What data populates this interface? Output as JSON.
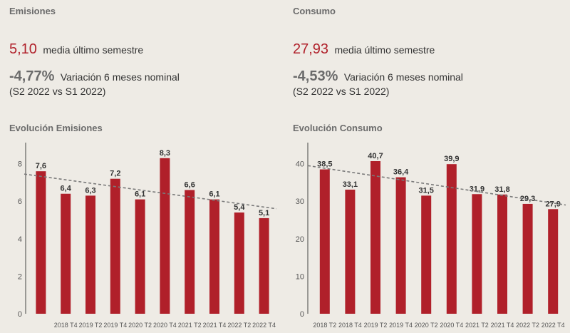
{
  "emisiones": {
    "title": "Emisiones",
    "avg_value": "5,10",
    "avg_label": "media último semestre",
    "var_value": "-4,77%",
    "var_label": "Variación 6 meses nominal",
    "comparison": "(S2 2022 vs S1 2022)",
    "chart_title": "Evolución Emisiones"
  },
  "consumo": {
    "title": "Consumo",
    "avg_value": "27,93",
    "avg_label": "media último semestre",
    "var_value": "-4,53%",
    "var_label": "Variación 6 meses nominal",
    "comparison": "(S2 2022 vs S1 2022)",
    "chart_title": "Evolución Consumo"
  },
  "colors": {
    "bar": "#b0202a",
    "trend": "#7a7a7a",
    "accent": "#b0202a"
  },
  "chart_data": [
    {
      "type": "bar",
      "title": "Evolución Emisiones",
      "categories": [
        "",
        "2018 T4",
        "2019 T2",
        "2019 T4",
        "2020 T2",
        "2020 T4",
        "2021 T2",
        "2021 T4",
        "2022 T2",
        "2022 T4"
      ],
      "values": [
        7.6,
        6.4,
        6.3,
        7.2,
        6.1,
        8.3,
        6.6,
        6.1,
        5.4,
        5.1
      ],
      "labels": [
        "7,6",
        "6,4",
        "6,3",
        "7,2",
        "6,1",
        "8,3",
        "6,6",
        "6,1",
        "5,4",
        "5,1"
      ],
      "yticks": [
        "0",
        "2",
        "4",
        "6",
        "8"
      ],
      "ytick_values": [
        0,
        2,
        4,
        6,
        8
      ],
      "ylim": [
        0,
        8.9
      ],
      "trendline": [
        7.45,
        5.6
      ]
    },
    {
      "type": "bar",
      "title": "Evolución Consumo",
      "categories": [
        "2018 T2",
        "2018 T4",
        "2019 T2",
        "2019 T4",
        "2020 T2",
        "2020 T4",
        "2021 T2",
        "2021 T4",
        "2022 T2",
        "2022 T4"
      ],
      "values": [
        38.5,
        33.1,
        40.7,
        36.4,
        31.5,
        39.9,
        31.9,
        31.8,
        29.3,
        27.9
      ],
      "labels": [
        "38,5",
        "33,1",
        "40,7",
        "36,4",
        "31,5",
        "39,9",
        "31,9",
        "31,8",
        "29,3",
        "27,9"
      ],
      "yticks": [
        "0",
        "10",
        "20",
        "30",
        "40"
      ],
      "ytick_values": [
        0,
        10,
        20,
        30,
        40
      ],
      "ylim": [
        0,
        44.5
      ],
      "trendline": [
        39.5,
        29.0
      ]
    }
  ]
}
